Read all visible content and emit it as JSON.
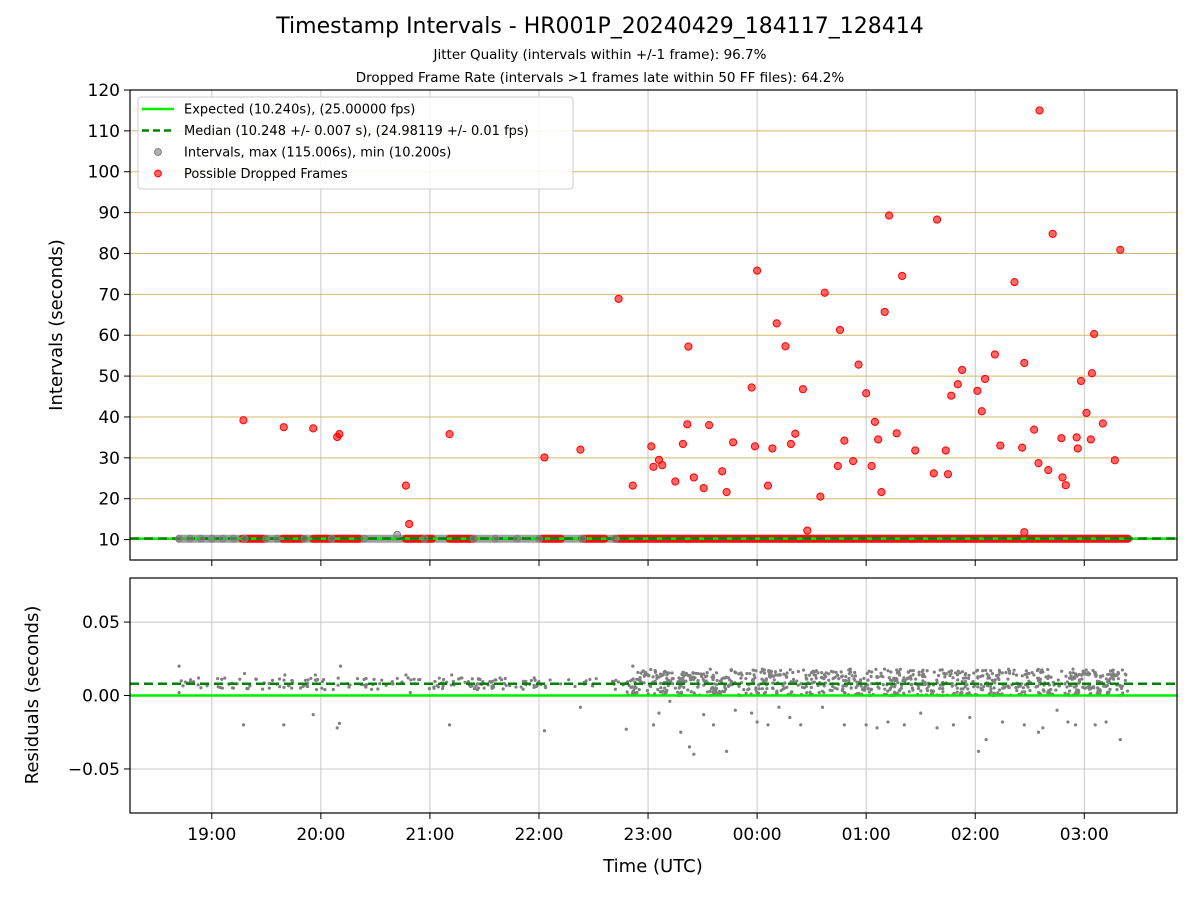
{
  "title": "Timestamp Intervals - HR001P_20240429_184117_128414",
  "subtitles": [
    "Jitter Quality (intervals within +/-1 frame): 96.7%",
    "Dropped Frame Rate (intervals >1 frames late within 50 FF files): 64.2%"
  ],
  "colors": {
    "expected": "#00ee00",
    "median": "#008000",
    "interval_points": "#808080",
    "dropped_points": "#ff0000",
    "top_grid": "#d2b96a",
    "grid": "#c8c8c8"
  },
  "chart_data": [
    {
      "type": "scatter",
      "panel": "top",
      "ylabel": "Intervals (seconds)",
      "xlabel": "",
      "x_ticks": [
        "19:00",
        "20:00",
        "21:00",
        "22:00",
        "23:00",
        "00:00",
        "01:00",
        "02:00",
        "03:00"
      ],
      "x_range_hours": [
        -0.75,
        8.85
      ],
      "ylim": [
        5,
        120
      ],
      "y_ticks": [
        10,
        20,
        30,
        40,
        50,
        60,
        70,
        80,
        90,
        100,
        110,
        120
      ],
      "grid": true,
      "legend_position": "top-left",
      "legend": [
        {
          "label": "Expected (10.240s), (25.00000 fps)",
          "style": "solid-line",
          "color": "#00ee00"
        },
        {
          "label": "Median (10.248 +/- 0.007 s), (24.98119 +/- 0.01 fps)",
          "style": "dashed-line",
          "color": "#008000"
        },
        {
          "label": "Intervals, max (115.006s), min (10.200s)",
          "style": "point",
          "color": "#808080"
        },
        {
          "label": "Possible Dropped Frames",
          "style": "point",
          "color": "#ff0000"
        }
      ],
      "series": [
        {
          "name": "Expected (10.240s), (25.00000 fps)",
          "kind": "hline",
          "y": 10.24
        },
        {
          "name": "Median (10.248 +/- 0.007 s), (24.98119 +/- 0.01 fps)",
          "kind": "hline",
          "y": 10.248
        },
        {
          "name": "Intervals, max (115.006s), min (10.200s)",
          "kind": "points",
          "points": [
            [
              -0.3,
              10.2
            ],
            [
              -0.2,
              10.2
            ],
            [
              -0.1,
              10.2
            ],
            [
              0.0,
              10.2
            ],
            [
              0.1,
              10.2
            ],
            [
              0.2,
              10.2
            ],
            [
              0.3,
              10.2
            ],
            [
              0.5,
              10.2
            ],
            [
              0.6,
              10.2
            ],
            [
              0.85,
              10.2
            ],
            [
              1.1,
              10.2
            ],
            [
              1.4,
              10.2
            ],
            [
              1.7,
              11.2
            ],
            [
              1.95,
              10.2
            ],
            [
              2.4,
              10.2
            ],
            [
              2.6,
              10.2
            ],
            [
              2.8,
              10.2
            ],
            [
              3.0,
              10.2
            ],
            [
              3.4,
              10.2
            ],
            [
              3.7,
              10.2
            ]
          ]
        },
        {
          "name": "Possible Dropped Frames",
          "kind": "points",
          "points": [
            [
              0.29,
              39.2
            ],
            [
              0.66,
              37.5
            ],
            [
              0.93,
              37.2
            ],
            [
              1.15,
              35.1
            ],
            [
              1.17,
              35.8
            ],
            [
              1.78,
              23.2
            ],
            [
              1.81,
              13.8
            ],
            [
              2.18,
              35.8
            ],
            [
              3.05,
              30.1
            ],
            [
              3.38,
              32.0
            ],
            [
              3.73,
              68.9
            ],
            [
              3.86,
              23.2
            ],
            [
              4.03,
              32.8
            ],
            [
              4.05,
              27.8
            ],
            [
              4.1,
              29.5
            ],
            [
              4.13,
              28.2
            ],
            [
              4.25,
              24.2
            ],
            [
              4.32,
              33.4
            ],
            [
              4.36,
              38.2
            ],
            [
              4.37,
              57.2
            ],
            [
              4.42,
              25.2
            ],
            [
              4.51,
              22.6
            ],
            [
              4.56,
              38.0
            ],
            [
              4.68,
              26.7
            ],
            [
              4.72,
              21.6
            ],
            [
              4.78,
              33.8
            ],
            [
              4.95,
              47.2
            ],
            [
              4.98,
              32.8
            ],
            [
              5.0,
              75.8
            ],
            [
              5.1,
              23.2
            ],
            [
              5.14,
              32.3
            ],
            [
              5.18,
              62.9
            ],
            [
              5.26,
              57.3
            ],
            [
              5.31,
              33.4
            ],
            [
              5.35,
              35.9
            ],
            [
              5.42,
              46.8
            ],
            [
              5.46,
              12.2
            ],
            [
              5.58,
              20.5
            ],
            [
              5.62,
              70.4
            ],
            [
              5.74,
              28.0
            ],
            [
              5.76,
              61.3
            ],
            [
              5.8,
              34.2
            ],
            [
              5.88,
              29.2
            ],
            [
              5.93,
              52.8
            ],
            [
              6.0,
              45.8
            ],
            [
              6.05,
              28.0
            ],
            [
              6.08,
              38.8
            ],
            [
              6.11,
              34.5
            ],
            [
              6.14,
              21.6
            ],
            [
              6.17,
              65.7
            ],
            [
              6.21,
              89.3
            ],
            [
              6.28,
              36.0
            ],
            [
              6.33,
              74.5
            ],
            [
              6.45,
              31.8
            ],
            [
              6.62,
              26.2
            ],
            [
              6.65,
              88.3
            ],
            [
              6.73,
              31.8
            ],
            [
              6.75,
              26.0
            ],
            [
              6.78,
              45.2
            ],
            [
              6.84,
              48.0
            ],
            [
              6.88,
              51.5
            ],
            [
              7.02,
              46.4
            ],
            [
              7.06,
              41.4
            ],
            [
              7.09,
              49.3
            ],
            [
              7.18,
              55.3
            ],
            [
              7.23,
              33.0
            ],
            [
              7.36,
              73.0
            ],
            [
              7.43,
              32.5
            ],
            [
              7.45,
              53.2
            ],
            [
              7.45,
              11.8
            ],
            [
              7.54,
              36.9
            ],
            [
              7.58,
              28.7
            ],
            [
              7.59,
              115.0
            ],
            [
              7.67,
              27.0
            ],
            [
              7.71,
              84.8
            ],
            [
              7.79,
              34.8
            ],
            [
              7.8,
              25.2
            ],
            [
              7.83,
              23.3
            ],
            [
              7.93,
              35.0
            ],
            [
              7.94,
              32.3
            ],
            [
              7.97,
              48.8
            ],
            [
              8.02,
              41.0
            ],
            [
              8.06,
              34.5
            ],
            [
              8.07,
              50.7
            ],
            [
              8.09,
              60.3
            ],
            [
              8.17,
              38.4
            ],
            [
              8.28,
              29.4
            ],
            [
              8.33,
              80.9
            ]
          ]
        }
      ],
      "baseline_dropped_segments": [
        [
          0.28,
          0.48
        ],
        [
          0.65,
          0.83
        ],
        [
          0.93,
          1.12
        ],
        [
          1.15,
          1.35
        ],
        [
          1.78,
          2.02
        ],
        [
          2.18,
          2.4
        ],
        [
          3.03,
          3.2
        ],
        [
          3.4,
          3.6
        ],
        [
          3.7,
          8.4
        ]
      ],
      "baseline_interval_segments": [
        [
          -0.3,
          8.4
        ]
      ]
    },
    {
      "type": "scatter",
      "panel": "bottom",
      "ylabel": "Residuals (seconds)",
      "xlabel": "Time (UTC)",
      "x_ticks": [
        "19:00",
        "20:00",
        "21:00",
        "22:00",
        "23:00",
        "00:00",
        "01:00",
        "02:00",
        "03:00"
      ],
      "x_range_hours": [
        -0.75,
        8.85
      ],
      "ylim": [
        -0.08,
        0.08
      ],
      "y_ticks": [
        {
          "value": 0.05,
          "label": "0.05"
        },
        {
          "value": 0.0,
          "label": "0.00"
        },
        {
          "value": -0.05,
          "label": "−0.05"
        }
      ],
      "grid": true,
      "series": [
        {
          "name": "Expected",
          "kind": "hline",
          "y": 0.0
        },
        {
          "name": "Median",
          "kind": "hline",
          "y": 0.008
        },
        {
          "name": "Residuals",
          "kind": "points",
          "points": [
            [
              -0.3,
              0.02
            ],
            [
              -0.28,
              0.01
            ],
            [
              -0.3,
              0.002
            ],
            [
              0.29,
              -0.02
            ],
            [
              0.3,
              0.015
            ],
            [
              0.66,
              -0.02
            ],
            [
              0.67,
              0.014
            ],
            [
              0.93,
              -0.013
            ],
            [
              0.95,
              0.014
            ],
            [
              1.15,
              -0.022
            ],
            [
              1.17,
              -0.019
            ],
            [
              1.18,
              0.02
            ],
            [
              1.78,
              0.014
            ],
            [
              1.8,
              0.012
            ],
            [
              1.82,
              0.002
            ],
            [
              2.18,
              -0.02
            ],
            [
              2.2,
              0.014
            ],
            [
              3.05,
              -0.024
            ],
            [
              3.38,
              -0.008
            ],
            [
              3.8,
              -0.023
            ],
            [
              3.86,
              0.02
            ],
            [
              3.88,
              0.006
            ],
            [
              4.05,
              -0.02
            ],
            [
              4.1,
              -0.012
            ],
            [
              4.2,
              -0.004
            ],
            [
              4.3,
              -0.025
            ],
            [
              4.38,
              -0.035
            ],
            [
              4.42,
              -0.04
            ],
            [
              4.51,
              -0.013
            ],
            [
              4.6,
              -0.02
            ],
            [
              4.72,
              -0.038
            ],
            [
              4.8,
              -0.01
            ],
            [
              4.95,
              -0.012
            ],
            [
              5.0,
              -0.018
            ],
            [
              5.1,
              -0.02
            ],
            [
              5.2,
              -0.008
            ],
            [
              5.3,
              -0.015
            ],
            [
              5.4,
              -0.02
            ],
            [
              5.6,
              -0.008
            ],
            [
              5.8,
              -0.02
            ],
            [
              6.0,
              -0.02
            ],
            [
              6.1,
              -0.022
            ],
            [
              6.2,
              -0.018
            ],
            [
              6.35,
              -0.02
            ],
            [
              6.5,
              -0.012
            ],
            [
              6.65,
              -0.022
            ],
            [
              6.8,
              -0.02
            ],
            [
              6.95,
              -0.015
            ],
            [
              7.03,
              -0.038
            ],
            [
              7.1,
              -0.03
            ],
            [
              7.25,
              -0.018
            ],
            [
              7.45,
              -0.02
            ],
            [
              7.58,
              -0.025
            ],
            [
              7.62,
              -0.022
            ],
            [
              7.75,
              -0.01
            ],
            [
              7.85,
              -0.018
            ],
            [
              7.92,
              -0.02
            ],
            [
              8.1,
              -0.02
            ],
            [
              8.2,
              -0.018
            ],
            [
              8.33,
              -0.03
            ]
          ]
        }
      ],
      "dense_bands": [
        {
          "x": [
            -0.3,
            3.8
          ],
          "y": [
            0.004,
            0.012
          ]
        },
        {
          "x": [
            3.8,
            8.4
          ],
          "y": [
            0.0,
            0.018
          ]
        }
      ]
    }
  ]
}
